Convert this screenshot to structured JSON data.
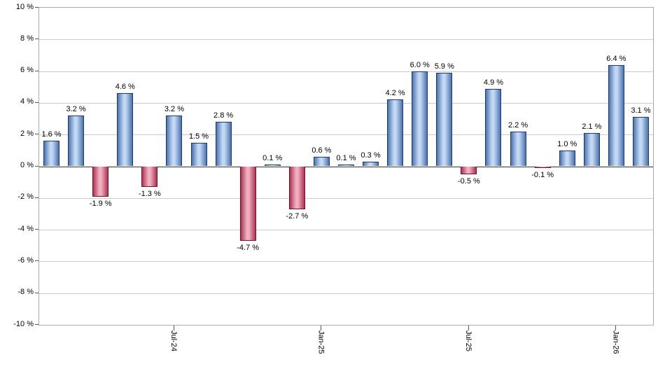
{
  "chart_data": {
    "type": "bar",
    "title": "",
    "xlabel": "",
    "ylabel": "",
    "ylim": [
      -10,
      10
    ],
    "grid": true,
    "y_tick_values": [
      10,
      8,
      6,
      4,
      2,
      0,
      -2,
      -4,
      -6,
      -8,
      -10
    ],
    "y_tick_labels": [
      "10 %",
      "8 %",
      "6 %",
      "4 %",
      "2 %",
      "0 %",
      "-2 %",
      "-4 %",
      "-6 %",
      "-8 %",
      "-10 %"
    ],
    "x_ticks": [
      {
        "index": 5,
        "label": "Jul-24"
      },
      {
        "index": 11,
        "label": "Jan-25"
      },
      {
        "index": 17,
        "label": "Jul-25"
      },
      {
        "index": 23,
        "label": "Jan-26"
      }
    ],
    "values": [
      1.6,
      3.2,
      -1.9,
      4.6,
      -1.3,
      3.2,
      1.5,
      2.8,
      -4.7,
      0.1,
      -2.7,
      0.6,
      0.1,
      0.3,
      4.2,
      6.0,
      5.9,
      -0.5,
      4.9,
      2.2,
      -0.1,
      1.0,
      2.1,
      6.4,
      3.1
    ],
    "value_labels": [
      "1.6 %",
      "3.2 %",
      "-1.9 %",
      "4.6 %",
      "-1.3 %",
      "3.2 %",
      "1.5 %",
      "2.8 %",
      "-4.7 %",
      "0.1 %",
      "-2.7 %",
      "0.6 %",
      "0.1 %",
      "0.3 %",
      "4.2 %",
      "6.0 %",
      "5.9 %",
      "-0.5 %",
      "4.9 %",
      "2.2 %",
      "-0.1 %",
      "1.0 %",
      "2.1 %",
      "6.4 %",
      "3.1 %"
    ],
    "legend": null,
    "colors": {
      "positive_fill_edge": "#4a74b0",
      "positive_fill_mid": "#c3d8f3",
      "positive_border": "#1e3a66",
      "negative_fill_edge": "#b23050",
      "negative_fill_mid": "#efb0c0",
      "negative_border": "#6e1430",
      "gridline": "#cccccc",
      "zero_line": "#333333",
      "plot_border": "#aaaaaa",
      "tick": "#555555",
      "text": "#000000"
    }
  }
}
